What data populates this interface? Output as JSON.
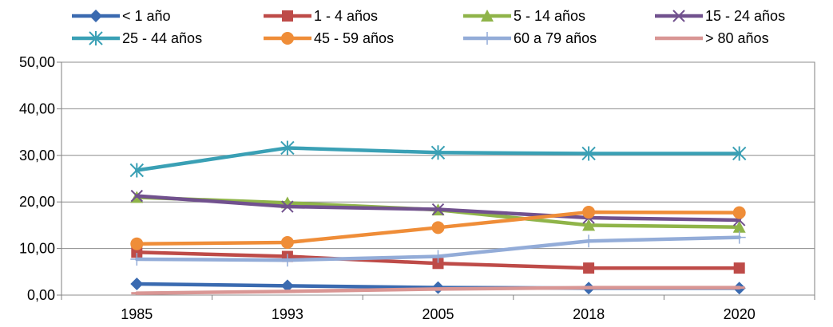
{
  "chart_data": {
    "type": "line",
    "title": "",
    "xlabel": "",
    "ylabel": "",
    "categories": [
      "1985",
      "1993",
      "2005",
      "2018",
      "2020"
    ],
    "ylim": [
      0,
      50
    ],
    "yticks": [
      "0,00",
      "10,00",
      "20,00",
      "30,00",
      "40,00",
      "50,00"
    ],
    "grid": true,
    "legend_position": "top",
    "series": [
      {
        "name": "< 1 año",
        "color": "#3a6ab0",
        "marker": "diamond",
        "values": [
          2.4,
          2.0,
          1.6,
          1.5,
          1.5
        ]
      },
      {
        "name": "1 -  4 años",
        "color": "#be4b48",
        "marker": "square",
        "values": [
          9.2,
          8.3,
          6.8,
          5.8,
          5.8
        ]
      },
      {
        "name": "5 - 14 años",
        "color": "#8fb449",
        "marker": "triangle",
        "values": [
          21.0,
          19.8,
          18.3,
          15.0,
          14.6
        ]
      },
      {
        "name": "15 - 24 años",
        "color": "#71518e",
        "marker": "x",
        "values": [
          21.3,
          19.0,
          18.4,
          16.6,
          16.1
        ]
      },
      {
        "name": "25 - 44 años",
        "color": "#3aa0b5",
        "marker": "star",
        "values": [
          26.8,
          31.6,
          30.6,
          30.4,
          30.4
        ]
      },
      {
        "name": "45 - 59 años",
        "color": "#ef8d38",
        "marker": "circle",
        "values": [
          11.0,
          11.3,
          14.5,
          17.8,
          17.7
        ]
      },
      {
        "name": "60 a 79 años",
        "color": "#93acd8",
        "marker": "plus",
        "values": [
          7.7,
          7.5,
          8.3,
          11.6,
          12.4
        ]
      },
      {
        "name": "> 80 años",
        "color": "#d99694",
        "marker": "dash",
        "values": [
          0.4,
          0.8,
          1.3,
          1.6,
          1.6
        ]
      }
    ]
  }
}
